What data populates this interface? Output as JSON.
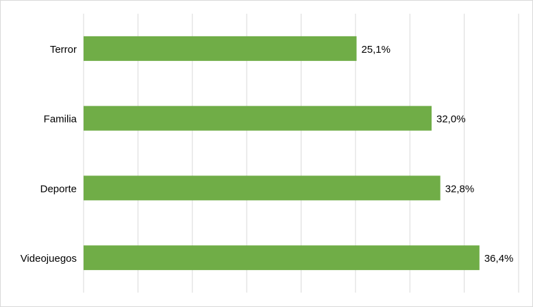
{
  "chart_data": {
    "type": "barh",
    "categories": [
      "Terror",
      "Familia",
      "Deporte",
      "Videojuegos"
    ],
    "values": [
      25.1,
      32.0,
      32.8,
      36.4
    ],
    "value_labels": [
      "25,1%",
      "32,0%",
      "32,8%",
      "36,4%"
    ],
    "color": "#70ad47",
    "xlim": [
      0,
      40
    ],
    "xticks": [
      0,
      5,
      10,
      15,
      20,
      25,
      30,
      35,
      40
    ],
    "grid": true
  }
}
